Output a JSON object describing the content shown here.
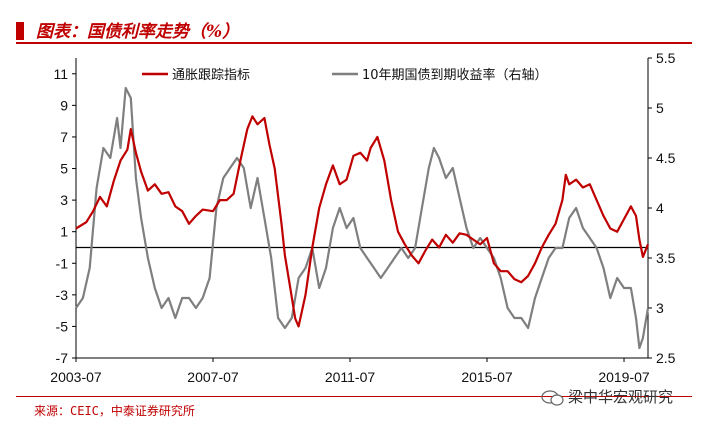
{
  "header": {
    "title": "图表：国债利率走势（%）"
  },
  "footer": {
    "source": "来源：CEIC，中泰证券研究所",
    "watermark": "梁中华宏观研究"
  },
  "colors": {
    "accent": "#c00000",
    "series1": "#c00000",
    "series2": "#7f7f7f",
    "zero_line": "#000000"
  },
  "chart_data": {
    "type": "line",
    "title": "",
    "xlabel": "",
    "ylabel": "",
    "x_ticks": [
      "2003-07",
      "2007-07",
      "2011-07",
      "2015-07",
      "2019-07"
    ],
    "y_left_ticks": [
      "11",
      "9",
      "7",
      "5",
      "3",
      "1",
      "-1",
      "-3",
      "-5",
      "-7"
    ],
    "y_right_ticks": [
      "5.5",
      "5",
      "4.5",
      "4",
      "3.5",
      "3",
      "2.5"
    ],
    "y_left_lim": [
      -7,
      12
    ],
    "y_right_lim": [
      2.5,
      5.5
    ],
    "x_lim": [
      2003.5,
      2020.2
    ],
    "legend_position": "top",
    "grid": false,
    "series": [
      {
        "name": "通胀跟踪指标",
        "axis": "left",
        "points": [
          [
            2003.5,
            1.2
          ],
          [
            2003.8,
            1.6
          ],
          [
            2004.0,
            2.3
          ],
          [
            2004.2,
            3.2
          ],
          [
            2004.4,
            2.6
          ],
          [
            2004.6,
            4.2
          ],
          [
            2004.8,
            5.5
          ],
          [
            2005.0,
            6.2
          ],
          [
            2005.1,
            7.5
          ],
          [
            2005.25,
            6.0
          ],
          [
            2005.4,
            4.8
          ],
          [
            2005.6,
            3.6
          ],
          [
            2005.8,
            4.0
          ],
          [
            2006.0,
            3.4
          ],
          [
            2006.2,
            3.5
          ],
          [
            2006.4,
            2.6
          ],
          [
            2006.6,
            2.3
          ],
          [
            2006.8,
            1.5
          ],
          [
            2007.0,
            2.0
          ],
          [
            2007.2,
            2.4
          ],
          [
            2007.5,
            2.3
          ],
          [
            2007.7,
            3.0
          ],
          [
            2007.9,
            3.0
          ],
          [
            2008.1,
            3.4
          ],
          [
            2008.3,
            5.5
          ],
          [
            2008.5,
            7.5
          ],
          [
            2008.65,
            8.3
          ],
          [
            2008.8,
            7.8
          ],
          [
            2009.0,
            8.2
          ],
          [
            2009.15,
            6.5
          ],
          [
            2009.3,
            5.0
          ],
          [
            2009.5,
            1.5
          ],
          [
            2009.6,
            -0.5
          ],
          [
            2009.75,
            -2.5
          ],
          [
            2009.9,
            -4.5
          ],
          [
            2010.0,
            -5.0
          ],
          [
            2010.2,
            -3.0
          ],
          [
            2010.4,
            0.0
          ],
          [
            2010.6,
            2.5
          ],
          [
            2010.8,
            4.0
          ],
          [
            2011.0,
            5.2
          ],
          [
            2011.2,
            4.0
          ],
          [
            2011.4,
            4.3
          ],
          [
            2011.6,
            5.8
          ],
          [
            2011.8,
            6.0
          ],
          [
            2012.0,
            5.5
          ],
          [
            2012.1,
            6.3
          ],
          [
            2012.3,
            7.0
          ],
          [
            2012.5,
            5.5
          ],
          [
            2012.7,
            3.0
          ],
          [
            2012.9,
            1.0
          ],
          [
            2013.1,
            0.2
          ],
          [
            2013.3,
            -0.5
          ],
          [
            2013.5,
            -1.0
          ],
          [
            2013.7,
            -0.2
          ],
          [
            2013.9,
            0.5
          ],
          [
            2014.1,
            0.0
          ],
          [
            2014.3,
            0.8
          ],
          [
            2014.5,
            0.3
          ],
          [
            2014.7,
            0.9
          ],
          [
            2014.9,
            0.8
          ],
          [
            2015.1,
            0.5
          ],
          [
            2015.3,
            0.2
          ],
          [
            2015.5,
            0.6
          ],
          [
            2015.7,
            -1.0
          ],
          [
            2015.9,
            -1.5
          ],
          [
            2016.1,
            -1.5
          ],
          [
            2016.3,
            -2.0
          ],
          [
            2016.5,
            -2.2
          ],
          [
            2016.7,
            -1.8
          ],
          [
            2016.9,
            -1.0
          ],
          [
            2017.1,
            0.0
          ],
          [
            2017.3,
            0.8
          ],
          [
            2017.5,
            1.5
          ],
          [
            2017.7,
            3.0
          ],
          [
            2017.8,
            4.6
          ],
          [
            2017.9,
            4.0
          ],
          [
            2018.1,
            4.3
          ],
          [
            2018.3,
            3.8
          ],
          [
            2018.5,
            4.0
          ],
          [
            2018.7,
            3.0
          ],
          [
            2018.9,
            2.0
          ],
          [
            2019.1,
            1.2
          ],
          [
            2019.3,
            1.0
          ],
          [
            2019.5,
            1.8
          ],
          [
            2019.7,
            2.6
          ],
          [
            2019.85,
            2.0
          ],
          [
            2019.95,
            0.5
          ],
          [
            2020.05,
            -0.6
          ],
          [
            2020.2,
            0.2
          ]
        ]
      },
      {
        "name": "10年期国债到期收益率（右轴）",
        "axis": "right",
        "points": [
          [
            2003.5,
            3.0
          ],
          [
            2003.7,
            3.1
          ],
          [
            2003.9,
            3.4
          ],
          [
            2004.1,
            4.2
          ],
          [
            2004.3,
            4.6
          ],
          [
            2004.5,
            4.5
          ],
          [
            2004.7,
            4.9
          ],
          [
            2004.8,
            4.6
          ],
          [
            2004.95,
            5.2
          ],
          [
            2005.1,
            5.1
          ],
          [
            2005.25,
            4.3
          ],
          [
            2005.4,
            3.9
          ],
          [
            2005.6,
            3.5
          ],
          [
            2005.8,
            3.2
          ],
          [
            2006.0,
            3.0
          ],
          [
            2006.2,
            3.1
          ],
          [
            2006.4,
            2.9
          ],
          [
            2006.6,
            3.1
          ],
          [
            2006.8,
            3.1
          ],
          [
            2007.0,
            3.0
          ],
          [
            2007.2,
            3.1
          ],
          [
            2007.4,
            3.3
          ],
          [
            2007.6,
            4.0
          ],
          [
            2007.8,
            4.3
          ],
          [
            2008.0,
            4.4
          ],
          [
            2008.2,
            4.5
          ],
          [
            2008.4,
            4.4
          ],
          [
            2008.6,
            4.0
          ],
          [
            2008.8,
            4.3
          ],
          [
            2009.0,
            3.9
          ],
          [
            2009.2,
            3.5
          ],
          [
            2009.4,
            2.9
          ],
          [
            2009.6,
            2.8
          ],
          [
            2009.8,
            2.9
          ],
          [
            2010.0,
            3.3
          ],
          [
            2010.2,
            3.4
          ],
          [
            2010.4,
            3.6
          ],
          [
            2010.6,
            3.2
          ],
          [
            2010.8,
            3.4
          ],
          [
            2011.0,
            3.8
          ],
          [
            2011.2,
            4.0
          ],
          [
            2011.4,
            3.8
          ],
          [
            2011.6,
            3.9
          ],
          [
            2011.8,
            3.6
          ],
          [
            2012.0,
            3.5
          ],
          [
            2012.2,
            3.4
          ],
          [
            2012.4,
            3.3
          ],
          [
            2012.6,
            3.4
          ],
          [
            2012.8,
            3.5
          ],
          [
            2013.0,
            3.6
          ],
          [
            2013.2,
            3.5
          ],
          [
            2013.4,
            3.6
          ],
          [
            2013.6,
            4.0
          ],
          [
            2013.8,
            4.4
          ],
          [
            2013.95,
            4.6
          ],
          [
            2014.1,
            4.5
          ],
          [
            2014.3,
            4.3
          ],
          [
            2014.5,
            4.4
          ],
          [
            2014.7,
            4.1
          ],
          [
            2014.9,
            3.8
          ],
          [
            2015.1,
            3.6
          ],
          [
            2015.3,
            3.7
          ],
          [
            2015.5,
            3.6
          ],
          [
            2015.7,
            3.5
          ],
          [
            2015.9,
            3.3
          ],
          [
            2016.1,
            3.0
          ],
          [
            2016.3,
            2.9
          ],
          [
            2016.5,
            2.9
          ],
          [
            2016.7,
            2.8
          ],
          [
            2016.9,
            3.1
          ],
          [
            2017.1,
            3.3
          ],
          [
            2017.3,
            3.5
          ],
          [
            2017.5,
            3.6
          ],
          [
            2017.7,
            3.6
          ],
          [
            2017.9,
            3.9
          ],
          [
            2018.1,
            4.0
          ],
          [
            2018.3,
            3.8
          ],
          [
            2018.5,
            3.7
          ],
          [
            2018.7,
            3.6
          ],
          [
            2018.9,
            3.4
          ],
          [
            2019.1,
            3.1
          ],
          [
            2019.3,
            3.3
          ],
          [
            2019.5,
            3.2
          ],
          [
            2019.7,
            3.2
          ],
          [
            2019.85,
            2.9
          ],
          [
            2019.95,
            2.6
          ],
          [
            2020.05,
            2.7
          ],
          [
            2020.2,
            3.0
          ]
        ]
      }
    ]
  }
}
